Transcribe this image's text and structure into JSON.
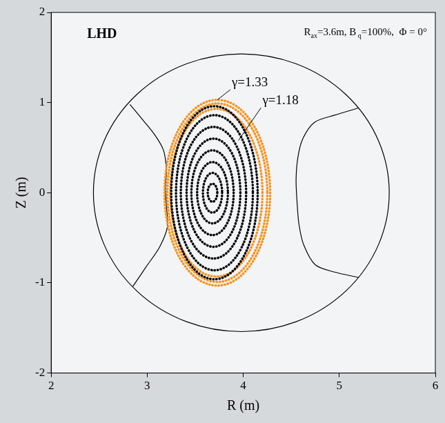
{
  "chart_data": {
    "type": "scatter",
    "title": "LHD",
    "subtitle_parts": [
      {
        "text": "R"
      },
      {
        "text": "ax",
        "sub": true
      },
      {
        "text": "=3.6m, B"
      },
      {
        "text": " q",
        "sub": true
      },
      {
        "text": "=100%,  Φ = 0°"
      }
    ],
    "x_label": "R (m)",
    "y_label": "Z (m)",
    "xlim": [
      2,
      6
    ],
    "xticks": [
      2,
      3,
      4,
      5,
      6
    ],
    "ylim": [
      -2,
      2
    ],
    "yticks": [
      -2,
      -1,
      0,
      1,
      2
    ],
    "grid": false,
    "vessel": {
      "center": [
        3.98,
        0
      ],
      "radius": 1.54,
      "color": "#000000"
    },
    "divertor": {
      "color": "#000000",
      "curves": [
        [
          [
            2.82,
            0.98
          ],
          [
            2.96,
            0.8
          ],
          [
            3.08,
            0.64
          ],
          [
            3.17,
            0.47
          ],
          [
            3.2,
            0.25
          ],
          [
            3.19,
            0.05
          ],
          [
            3.2,
            -0.15
          ],
          [
            3.21,
            -0.38
          ],
          [
            3.13,
            -0.6
          ],
          [
            2.99,
            -0.82
          ],
          [
            2.85,
            -1.04
          ]
        ],
        [
          [
            5.2,
            0.94
          ],
          [
            4.95,
            0.86
          ],
          [
            4.74,
            0.78
          ],
          [
            4.62,
            0.6
          ],
          [
            4.57,
            0.4
          ],
          [
            4.55,
            0.15
          ],
          [
            4.56,
            -0.1
          ],
          [
            4.58,
            -0.35
          ],
          [
            4.63,
            -0.58
          ],
          [
            4.75,
            -0.8
          ],
          [
            4.95,
            -0.88
          ],
          [
            5.2,
            -0.94
          ]
        ]
      ]
    },
    "surfaces": [
      {
        "gamma": 1.33,
        "color": "#f7931e",
        "center": [
          3.73,
          0
        ],
        "half_axes": [
          0.55,
          1.03
        ]
      },
      {
        "gamma": 1.33,
        "color": "#f7931e",
        "center": [
          3.73,
          0
        ],
        "half_axes": [
          0.52,
          0.99
        ]
      },
      {
        "gamma": 1.33,
        "color": "#f7931e",
        "center": [
          3.72,
          0
        ],
        "half_axes": [
          0.48,
          0.93
        ]
      },
      {
        "gamma": 1.18,
        "color": "#000000",
        "center": [
          3.7,
          0
        ],
        "half_axes": [
          0.45,
          0.96
        ]
      },
      {
        "gamma": 1.18,
        "color": "#000000",
        "center": [
          3.7,
          0
        ],
        "half_axes": [
          0.4,
          0.86
        ]
      },
      {
        "gamma": 1.18,
        "color": "#000000",
        "center": [
          3.69,
          0
        ],
        "half_axes": [
          0.34,
          0.73
        ]
      },
      {
        "gamma": 1.18,
        "color": "#000000",
        "center": [
          3.69,
          0
        ],
        "half_axes": [
          0.28,
          0.6
        ]
      },
      {
        "gamma": 1.18,
        "color": "#000000",
        "center": [
          3.68,
          0
        ],
        "half_axes": [
          0.22,
          0.47
        ]
      },
      {
        "gamma": 1.18,
        "color": "#000000",
        "center": [
          3.68,
          0
        ],
        "half_axes": [
          0.16,
          0.34
        ]
      },
      {
        "gamma": 1.18,
        "color": "#000000",
        "center": [
          3.68,
          0
        ],
        "half_axes": [
          0.1,
          0.22
        ]
      },
      {
        "gamma": 1.18,
        "color": "#000000",
        "center": [
          3.68,
          0
        ],
        "half_axes": [
          0.05,
          0.1
        ]
      }
    ],
    "annotations": [
      {
        "text": "γ=1.33",
        "x": 3.88,
        "y": 1.22,
        "points_to": [
          3.73,
          1.03
        ]
      },
      {
        "text": "γ=1.18",
        "x": 4.2,
        "y": 1.02,
        "points_to": [
          3.95,
          0.58
        ]
      }
    ]
  }
}
